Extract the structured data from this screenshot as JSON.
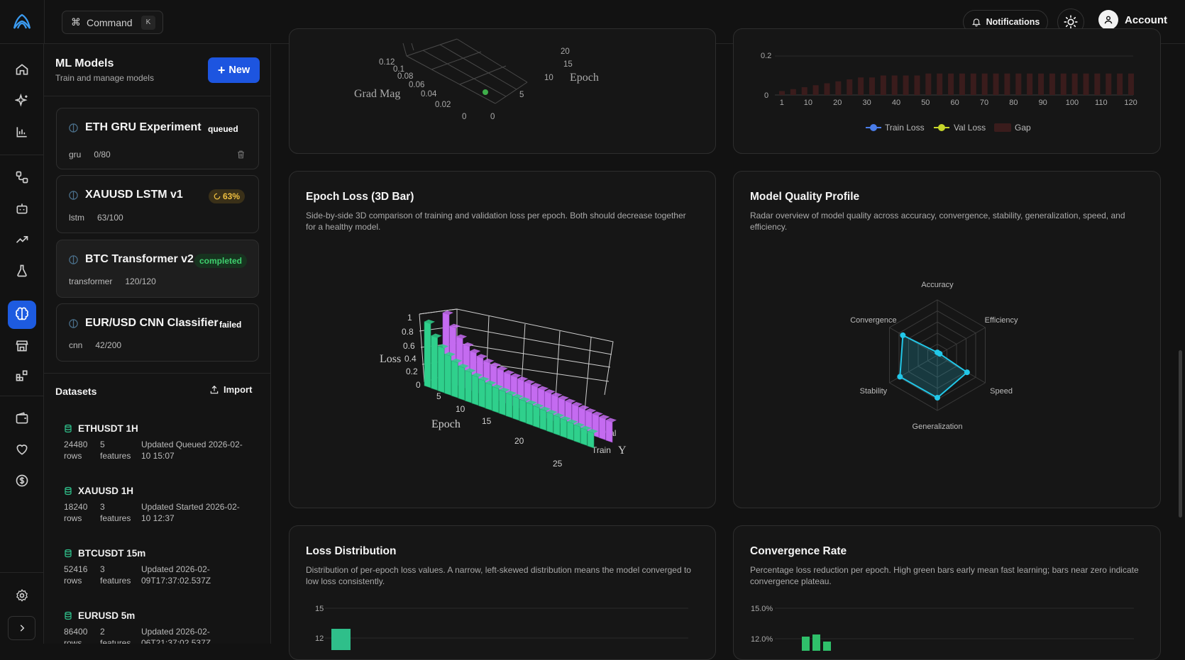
{
  "topbar": {
    "command_label": "Command",
    "command_shortcut": "K",
    "notifications_label": "Notifications",
    "account_label": "Account"
  },
  "sidebar": {
    "title": "ML Models",
    "subtitle": "Train and manage models",
    "new_label": "New",
    "models": [
      {
        "name": "ETH GRU Experiment",
        "status": "queued",
        "arch": "gru",
        "progress": "0/80"
      },
      {
        "name": "XAUUSD LSTM v1",
        "status": "63%",
        "arch": "lstm",
        "progress": "63/100"
      },
      {
        "name": "BTC Transformer v2",
        "status": "completed",
        "arch": "transformer",
        "progress": "120/120"
      },
      {
        "name": "EUR/USD CNN Classifier",
        "status": "failed",
        "arch": "cnn",
        "progress": "42/200"
      }
    ],
    "datasets_title": "Datasets",
    "import_label": "Import",
    "datasets": [
      {
        "name": "ETHUSDT 1H",
        "rows": "24480",
        "rows_label": "rows",
        "features": "5",
        "features_label": "features",
        "updated1": "Updated Queued 2026-02-",
        "updated2": "10 15:07"
      },
      {
        "name": "XAUUSD 1H",
        "rows": "18240",
        "rows_label": "rows",
        "features": "3",
        "features_label": "features",
        "updated1": "Updated Started 2026-02-",
        "updated2": "10 12:37"
      },
      {
        "name": "BTCUSDT 15m",
        "rows": "52416",
        "rows_label": "rows",
        "features": "3",
        "features_label": "features",
        "updated1": "Updated 2026-02-",
        "updated2": "09T17:37:02.537Z"
      },
      {
        "name": "EURUSD 5m",
        "rows": "86400",
        "rows_label": "rows",
        "features": "2",
        "features_label": "features",
        "updated1": "Updated 2026-02-",
        "updated2": "06T21:37:02.537Z"
      }
    ]
  },
  "colors": {
    "accent": "#1d55e0",
    "train": "#2fd08c",
    "val": "#c46bf0",
    "radar": "#22c7e8",
    "bar_green": "#2fbf6a",
    "gap": "#3a1c1c"
  },
  "grad_card": {
    "z_label": "Grad Mag",
    "z_ticks": [
      "0.12",
      "0.1",
      "0.08",
      "0.06",
      "0.04",
      "0.02",
      "0"
    ],
    "x_label": "Epoch",
    "x_ticks": [
      "20",
      "15",
      "10",
      "5",
      "0"
    ]
  },
  "loss_curve_card": {
    "y_ticks": [
      "0.2",
      "0"
    ],
    "x_ticks": [
      "1",
      "10",
      "20",
      "30",
      "40",
      "50",
      "60",
      "70",
      "80",
      "90",
      "100",
      "110",
      "120"
    ],
    "legend": [
      "Train Loss",
      "Val Loss",
      "Gap"
    ]
  },
  "epoch_loss_card": {
    "title": "Epoch Loss (3D Bar)",
    "description": "Side-by-side 3D comparison of training and validation loss per epoch. Both should decrease together for a healthy model.",
    "z_label": "Loss",
    "z_ticks": [
      "1",
      "0.8",
      "0.6",
      "0.4",
      "0.2",
      "0"
    ],
    "x_label": "Epoch",
    "x_ticks": [
      "5",
      "10",
      "15",
      "20",
      "25"
    ],
    "y_label": "Y",
    "y_ticks": [
      "Val",
      "Train"
    ]
  },
  "quality_card": {
    "title": "Model Quality Profile",
    "description": "Radar overview of model quality across accuracy, convergence, stability, generalization, speed, and efficiency.",
    "axes": [
      "Accuracy",
      "Efficiency",
      "Speed",
      "Generalization",
      "Stability",
      "Convergence"
    ],
    "values": [
      0.05,
      0.05,
      0.62,
      0.77,
      0.78,
      0.72
    ]
  },
  "loss_dist_card": {
    "title": "Loss Distribution",
    "description": "Distribution of per-epoch loss values. A narrow, left-skewed distribution means the model converged to low loss consistently.",
    "y_ticks": [
      "15",
      "12"
    ]
  },
  "convergence_card": {
    "title": "Convergence Rate",
    "description": "Percentage loss reduction per epoch. High green bars early mean fast learning; bars near zero indicate convergence plateau.",
    "y_ticks": [
      "15.0%",
      "12.0%"
    ]
  },
  "chart_data": [
    {
      "type": "bar",
      "title": "Epoch Loss (3D Bar)",
      "xlabel": "Epoch",
      "ylabel": "Loss",
      "ylim": [
        0,
        1
      ],
      "categories": [
        1,
        2,
        3,
        4,
        5,
        6,
        7,
        8,
        9,
        10,
        11,
        12,
        13,
        14,
        15,
        16,
        17,
        18,
        19,
        20,
        21,
        22,
        23,
        24,
        25
      ],
      "series": [
        {
          "name": "Train",
          "values": [
            0.95,
            0.78,
            0.66,
            0.58,
            0.52,
            0.48,
            0.45,
            0.42,
            0.4,
            0.38,
            0.36,
            0.35,
            0.34,
            0.33,
            0.32,
            0.31,
            0.3,
            0.29,
            0.28,
            0.27,
            0.26,
            0.25,
            0.24,
            0.23,
            0.22
          ]
        },
        {
          "name": "Val",
          "values": [
            1.0,
            0.84,
            0.72,
            0.64,
            0.58,
            0.54,
            0.51,
            0.49,
            0.47,
            0.45,
            0.44,
            0.43,
            0.42,
            0.41,
            0.4,
            0.39,
            0.38,
            0.37,
            0.36,
            0.35,
            0.34,
            0.33,
            0.32,
            0.31,
            0.3
          ]
        }
      ]
    },
    {
      "type": "radar",
      "title": "Model Quality Profile",
      "categories": [
        "Accuracy",
        "Efficiency",
        "Speed",
        "Generalization",
        "Stability",
        "Convergence"
      ],
      "values": [
        0.05,
        0.05,
        0.62,
        0.77,
        0.78,
        0.72
      ]
    },
    {
      "type": "bar",
      "xlabel": "",
      "x_ticks": [
        "1",
        "10",
        "20",
        "30",
        "40",
        "50",
        "60",
        "70",
        "80",
        "90",
        "100",
        "110",
        "120"
      ],
      "legend": [
        "Train Loss",
        "Val Loss",
        "Gap"
      ],
      "gap_values": [
        0.02,
        0.03,
        0.04,
        0.05,
        0.06,
        0.07,
        0.08,
        0.09,
        0.09,
        0.1,
        0.1,
        0.1,
        0.1,
        0.11,
        0.11,
        0.11,
        0.11,
        0.11,
        0.11,
        0.11,
        0.11,
        0.11,
        0.11,
        0.11,
        0.11,
        0.11,
        0.11,
        0.11,
        0.11,
        0.11,
        0.11,
        0.11
      ]
    }
  ]
}
